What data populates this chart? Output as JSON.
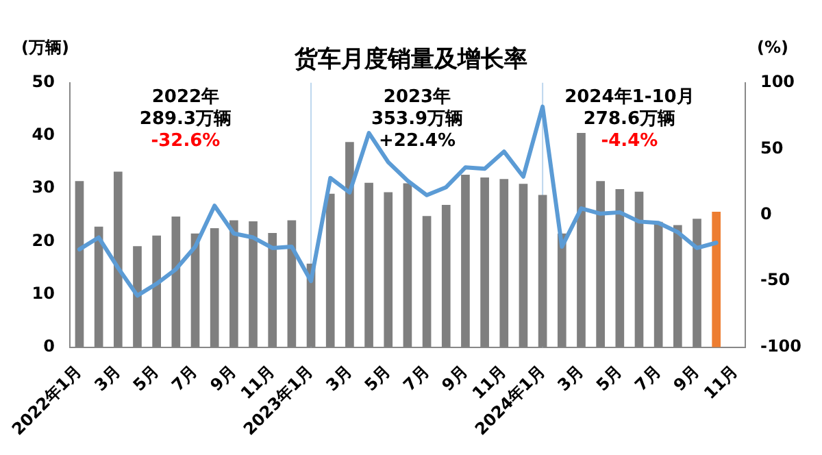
{
  "chart_data": {
    "type": "bar",
    "title": "货车月度销量及增长率",
    "ylabel": "(万辆)",
    "y2label": "(%)",
    "categories": [
      "2022年1月",
      null,
      "3月",
      null,
      "5月",
      null,
      "7月",
      null,
      "9月",
      null,
      "11月",
      null,
      "2023年1月",
      null,
      "3月",
      null,
      "5月",
      null,
      "7月",
      null,
      "9月",
      null,
      "11月",
      null,
      "2024年1月",
      null,
      "3月",
      null,
      "5月",
      null,
      "7月",
      null,
      "9月",
      null,
      "11月"
    ],
    "series": [
      {
        "colors": [
          "#7f7f7f",
          "#7f7f7f",
          "#7f7f7f",
          "#7f7f7f",
          "#7f7f7f",
          "#7f7f7f",
          "#7f7f7f",
          "#7f7f7f",
          "#7f7f7f",
          "#7f7f7f",
          "#7f7f7f",
          "#7f7f7f",
          "#7f7f7f",
          "#7f7f7f",
          "#7f7f7f",
          "#7f7f7f",
          "#7f7f7f",
          "#7f7f7f",
          "#7f7f7f",
          "#7f7f7f",
          "#7f7f7f",
          "#7f7f7f",
          "#7f7f7f",
          "#7f7f7f",
          "#7f7f7f",
          "#7f7f7f",
          "#7f7f7f",
          "#7f7f7f",
          "#7f7f7f",
          "#7f7f7f",
          "#7f7f7f",
          "#7f7f7f",
          "#7f7f7f",
          "#ed7d31",
          "#7f7f7f"
        ],
        "values": [
          31.4,
          22.8,
          33.2,
          19.1,
          21.1,
          24.7,
          21.5,
          22.5,
          24.0,
          23.8,
          21.6,
          24.0,
          15.8,
          29.0,
          38.8,
          31.1,
          29.3,
          31.0,
          24.8,
          26.9,
          32.6,
          32.1,
          31.8,
          30.9,
          28.8,
          21.5,
          40.5,
          31.4,
          29.9,
          29.4,
          23.7,
          23.1,
          24.3,
          25.6,
          null
        ]
      },
      {
        "type": "line",
        "axis": "y2",
        "color": "#5b9bd5",
        "values": [
          -26,
          -17,
          -40,
          -61,
          -52,
          -41,
          -24,
          7,
          -14,
          -17,
          -25,
          -24,
          -50,
          28,
          17,
          62,
          40,
          26,
          15,
          21,
          36,
          35,
          48,
          29,
          82,
          -24,
          5,
          1,
          2,
          -5,
          -6,
          -13,
          -25,
          -21,
          null
        ]
      }
    ],
    "ylim": [
      0,
      50
    ],
    "yticks": [
      0,
      10,
      20,
      30,
      40,
      50
    ],
    "y2lim": [
      -100,
      100
    ],
    "y2ticks": [
      -100,
      -50,
      0,
      50,
      100
    ],
    "ref_lines": [
      {
        "axis": "x",
        "value": "2023年1月",
        "color": "#bdd7ee"
      },
      {
        "axis": "x",
        "value": "2024年1月",
        "color": "#bdd7ee"
      }
    ],
    "annotations": [
      "2022年",
      "289.3万辆",
      "-32.6%",
      "2023年",
      "353.9万辆",
      "+22.4%",
      "2024年1-10月",
      "278.6万辆",
      "-4.4%"
    ],
    "grid": false,
    "legend": false,
    "marker": "none",
    "line_style": "solid"
  }
}
